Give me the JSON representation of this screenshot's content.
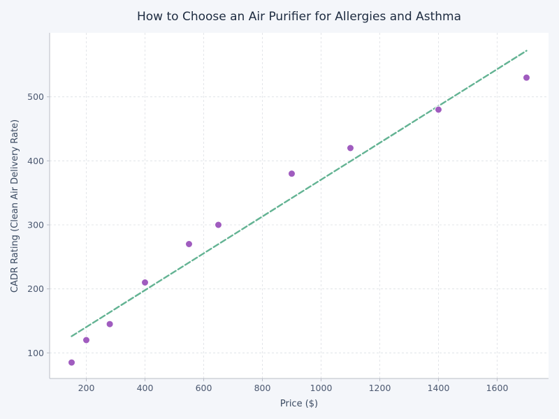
{
  "chart_data": {
    "type": "scatter",
    "title": "How to Choose an Air Purifier for Allergies and Asthma",
    "xlabel": "Price ($)",
    "ylabel": "CADR Rating (Clean Air Delivery Rate)",
    "xlim": [
      75,
      1775
    ],
    "ylim": [
      60,
      600
    ],
    "xticks": [
      200,
      400,
      600,
      800,
      1000,
      1200,
      1400,
      1600
    ],
    "yticks": [
      100,
      200,
      300,
      400,
      500
    ],
    "grid": true,
    "grid_style": "dashed",
    "series": [
      {
        "marker": "circle",
        "color": "#a05cbf",
        "points": [
          {
            "x": 150,
            "y": 85
          },
          {
            "x": 200,
            "y": 120
          },
          {
            "x": 280,
            "y": 145
          },
          {
            "x": 400,
            "y": 210
          },
          {
            "x": 550,
            "y": 270
          },
          {
            "x": 650,
            "y": 300
          },
          {
            "x": 900,
            "y": 380
          },
          {
            "x": 1100,
            "y": 420
          },
          {
            "x": 1400,
            "y": 480
          },
          {
            "x": 1700,
            "y": 530
          }
        ]
      }
    ],
    "trendline": {
      "style": "dashed",
      "color": "#63b393",
      "x": [
        150,
        1700
      ],
      "y": [
        126,
        572
      ]
    }
  },
  "colors": {
    "background": "#f4f6fa",
    "plot_background": "#ffffff",
    "marker": "#a05cbf",
    "trendline": "#63b393",
    "grid": "#dcdfe4",
    "axis": "#b9bcc6",
    "title": "#1c2a3f",
    "label": "#3a4a61",
    "tick": "#4b5870"
  }
}
